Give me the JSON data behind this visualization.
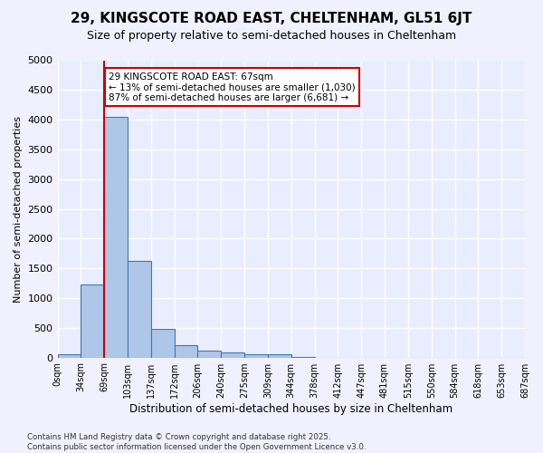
{
  "title": "29, KINGSCOTE ROAD EAST, CHELTENHAM, GL51 6JT",
  "subtitle": "Size of property relative to semi-detached houses in Cheltenham",
  "xlabel": "Distribution of semi-detached houses by size in Cheltenham",
  "ylabel": "Number of semi-detached properties",
  "bin_labels": [
    "0sqm",
    "34sqm",
    "69sqm",
    "103sqm",
    "137sqm",
    "172sqm",
    "206sqm",
    "240sqm",
    "275sqm",
    "309sqm",
    "344sqm",
    "378sqm",
    "412sqm",
    "447sqm",
    "481sqm",
    "515sqm",
    "550sqm",
    "584sqm",
    "618sqm",
    "653sqm",
    "687sqm"
  ],
  "bar_values": [
    50,
    1230,
    4050,
    1630,
    480,
    200,
    120,
    80,
    60,
    55,
    5,
    0,
    0,
    0,
    0,
    0,
    0,
    0,
    0,
    0
  ],
  "bar_color": "#aec6e8",
  "bar_edge_color": "#4477aa",
  "annotation_text": "29 KINGSCOTE ROAD EAST: 67sqm\n← 13% of semi-detached houses are smaller (1,030)\n87% of semi-detached houses are larger (6,681) →",
  "annotation_box_color": "#ffffff",
  "annotation_box_edge": "#cc0000",
  "red_line_color": "#cc0000",
  "red_line_x": 2,
  "ylim": [
    0,
    5000
  ],
  "yticks": [
    0,
    500,
    1000,
    1500,
    2000,
    2500,
    3000,
    3500,
    4000,
    4500,
    5000
  ],
  "background_color": "#e8eeff",
  "grid_color": "#ffffff",
  "footer_line1": "Contains HM Land Registry data © Crown copyright and database right 2025.",
  "footer_line2": "Contains public sector information licensed under the Open Government Licence v3.0."
}
